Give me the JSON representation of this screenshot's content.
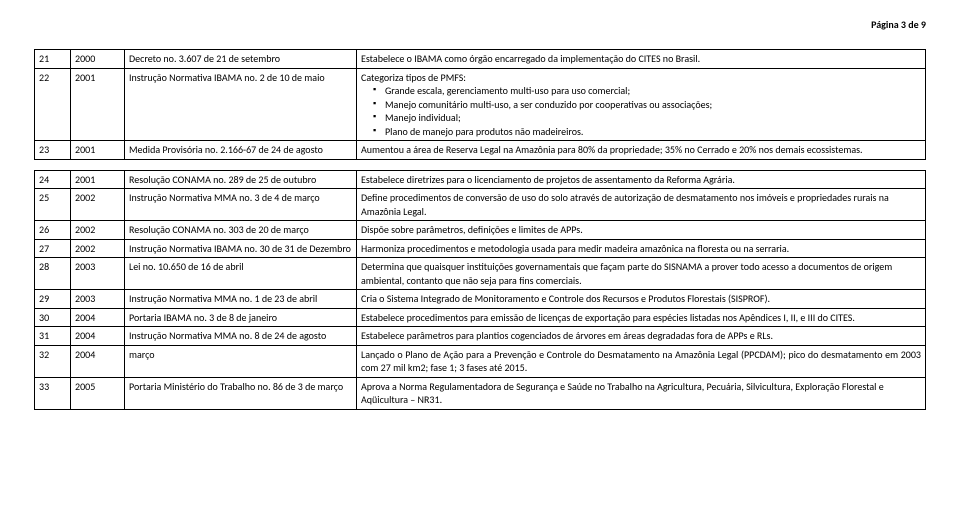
{
  "header": {
    "page_label": "Página 3 de 9"
  },
  "table1": {
    "rows": [
      {
        "n": "21",
        "year": "2000",
        "norm": "Decreto no. 3.607 de 21 de setembro",
        "desc_plain": "Estabelece o IBAMA como órgão encarregado da implementação do CITES no Brasil."
      },
      {
        "n": "22",
        "year": "2001",
        "norm": "Instrução Normativa  IBAMA no. 2 de 10 de maio",
        "desc_lead": "Categoriza tipos de PMFS:",
        "desc_bullets": [
          "Grande escala, gerenciamento multi-uso para uso comercial;",
          "Manejo comunitário multi-uso, a ser conduzido por cooperativas ou associações;",
          "Manejo individual;",
          "Plano de manejo para produtos não madeireiros."
        ]
      },
      {
        "n": "23",
        "year": "2001",
        "norm": "Medida Provisória no. 2.166-67 de 24 de agosto",
        "desc_plain": "Aumentou a área de Reserva Legal na Amazônia para 80% da propriedade; 35% no Cerrado e 20% nos demais ecossistemas."
      }
    ]
  },
  "table2": {
    "rows": [
      {
        "n": "24",
        "year": "2001",
        "norm": "Resolução CONAMA no. 289 de 25 de outubro",
        "desc": "Estabelece diretrizes para o licenciamento de projetos de assentamento da Reforma Agrária."
      },
      {
        "n": "25",
        "year": "2002",
        "norm": "Instrução Normativa MMA no. 3 de 4 de março",
        "desc": "Define procedimentos de conversão de uso do solo através de autorização de desmatamento nos imóveis e propriedades rurais na Amazônia Legal."
      },
      {
        "n": "26",
        "year": "2002",
        "norm": "Resolução CONAMA no. 303 de 20 de março",
        "desc": "Dispõe sobre  parâmetros, definições e limites de APPs."
      },
      {
        "n": "27",
        "year": "2002",
        "norm": "Instrução Normativa IBAMA no. 30 de 31 de Dezembro",
        "desc": "Harmoniza procedimentos e metodologia usada para medir madeira amazônica na floresta ou na serraria."
      },
      {
        "n": "28",
        "year": "2003",
        "norm": "Lei no. 10.650 de 16 de abril",
        "desc": "Determina que quaisquer instituições governamentais que façam parte do SISNAMA a prover todo acesso a documentos de origem ambiental, contanto que não seja para fins comerciais."
      },
      {
        "n": "29",
        "year": "2003",
        "norm": "Instrução Normativa MMA no. 1 de 23 de abril",
        "desc": "Cria o Sistema Integrado de Monitoramento e Controle dos Recursos e Produtos Florestais (SISPROF)."
      },
      {
        "n": "30",
        "year": "2004",
        "norm": "Portaria IBAMA no. 3 de 8 de janeiro",
        "desc": "Estabelece procedimentos para emissão de licenças de exportação para espécies listadas nos Apêndices I, II, e III do CITES.",
        "justify": true
      },
      {
        "n": "31",
        "year": "2004",
        "norm": "Instrução Normativa MMA no. 8 de 24 de agosto",
        "desc": "Estabelece parâmetros para plantios cogenciados de árvores em áreas degradadas fora de APPs e RLs."
      },
      {
        "n": "32",
        "year": "2004",
        "norm": "março",
        "desc": "Lançado o Plano de Ação para a Prevenção e Controle do Desmatamento na Amazônia Legal (PPCDAM); pico do desmatamento em 2003 com 27 mil km2; fase 1; 3 fases até 2015.",
        "justify": true
      },
      {
        "n": "33",
        "year": "2005",
        "norm": "Portaria Ministério do Trabalho no. 86 de 3 de março",
        "desc": "Aprova a Norma Regulamentadora de Segurança e Saúde no Trabalho na Agricultura, Pecuária, Silvicultura, Exploração Florestal e Aqüicultura – NR31."
      }
    ]
  }
}
